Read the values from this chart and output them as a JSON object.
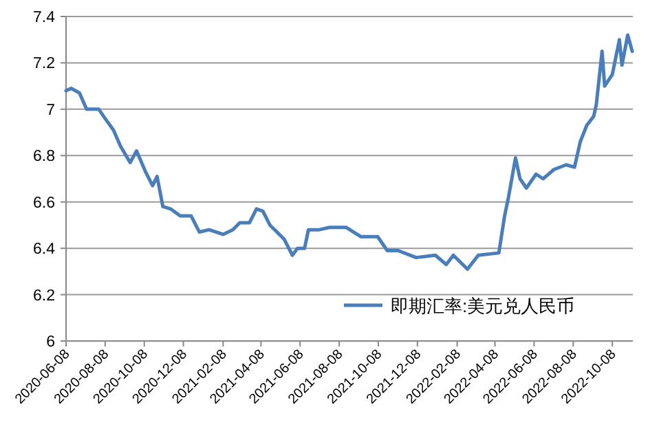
{
  "chart_data": {
    "type": "line",
    "x": [
      "2020-06-08",
      "2020-06-16",
      "2020-06-29",
      "2020-07-10",
      "2020-07-29",
      "2020-08-08",
      "2020-08-21",
      "2020-09-01",
      "2020-09-16",
      "2020-09-26",
      "2020-10-10",
      "2020-10-21",
      "2020-10-28",
      "2020-11-06",
      "2020-11-18",
      "2020-12-03",
      "2020-12-20",
      "2021-01-02",
      "2021-01-17",
      "2021-02-08",
      "2021-02-23",
      "2021-03-06",
      "2021-03-21",
      "2021-04-01",
      "2021-04-11",
      "2021-04-22",
      "2021-05-03",
      "2021-05-14",
      "2021-05-27",
      "2021-06-04",
      "2021-06-15",
      "2021-06-21",
      "2021-07-08",
      "2021-07-24",
      "2021-08-19",
      "2021-09-11",
      "2021-10-07",
      "2021-10-22",
      "2021-11-08",
      "2021-12-06",
      "2022-01-05",
      "2022-01-22",
      "2022-02-02",
      "2022-02-24",
      "2022-03-13",
      "2022-04-14",
      "2022-04-23",
      "2022-04-29",
      "2022-05-10",
      "2022-05-17",
      "2022-05-27",
      "2022-06-11",
      "2022-06-22",
      "2022-07-09",
      "2022-07-28",
      "2022-08-10",
      "2022-08-19",
      "2022-08-29",
      "2022-09-09",
      "2022-09-13",
      "2022-09-22",
      "2022-09-26",
      "2022-10-08",
      "2022-10-19",
      "2022-10-23",
      "2022-11-01",
      "2022-11-08"
    ],
    "series": [
      {
        "name": "即期汇率:美元兑人民币",
        "color": "#4a7ebb",
        "values": [
          7.08,
          7.09,
          7.07,
          7.0,
          7.0,
          6.96,
          6.91,
          6.84,
          6.77,
          6.82,
          6.73,
          6.67,
          6.71,
          6.58,
          6.57,
          6.54,
          6.54,
          6.47,
          6.48,
          6.46,
          6.48,
          6.51,
          6.51,
          6.57,
          6.56,
          6.5,
          6.47,
          6.44,
          6.37,
          6.4,
          6.4,
          6.48,
          6.48,
          6.49,
          6.49,
          6.45,
          6.45,
          6.39,
          6.39,
          6.36,
          6.37,
          6.33,
          6.37,
          6.31,
          6.37,
          6.38,
          6.54,
          6.62,
          6.79,
          6.7,
          6.66,
          6.72,
          6.7,
          6.74,
          6.76,
          6.75,
          6.86,
          6.93,
          6.97,
          7.02,
          7.25,
          7.1,
          7.15,
          7.3,
          7.19,
          7.32,
          7.25
        ]
      }
    ],
    "xlim": [
      "2020-06-08",
      "2022-11-09"
    ],
    "xticks": [
      "2020-06-08",
      "2020-08-08",
      "2020-10-08",
      "2020-12-08",
      "2021-02-08",
      "2021-04-08",
      "2021-06-08",
      "2021-08-08",
      "2021-10-08",
      "2021-12-08",
      "2022-02-08",
      "2022-04-08",
      "2022-06-08",
      "2022-08-08",
      "2022-10-08"
    ],
    "ylim": [
      6,
      7.4
    ],
    "yticks": [
      6,
      6.2,
      6.4,
      6.6,
      6.8,
      7,
      7.2,
      7.4
    ],
    "grid": "y",
    "legend": "bottom right",
    "marker": "none",
    "line_style": "solid"
  }
}
